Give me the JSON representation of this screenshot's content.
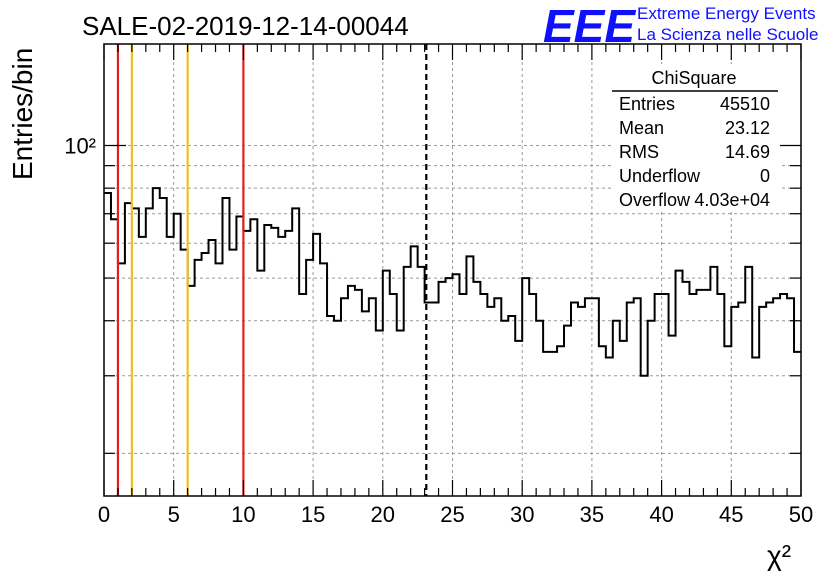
{
  "title": "SALE-02-2019-12-14-00044",
  "logo": {
    "mark": "EEE",
    "line1": "Extreme Energy Events",
    "line2": "La Scienza nelle Scuole",
    "color": "#1010ff"
  },
  "stats_box": {
    "title": "ChiSquare",
    "rows": [
      {
        "label": "Entries",
        "value": "45510"
      },
      {
        "label": "Mean",
        "value": "23.12"
      },
      {
        "label": "RMS",
        "value": "14.69"
      },
      {
        "label": "Underflow",
        "value": "0"
      },
      {
        "label": "Overflow",
        "value": "4.03e+04"
      }
    ]
  },
  "chart_data": {
    "type": "histogram",
    "title": "SALE-02-2019-12-14-00044",
    "xlabel": "χ²",
    "ylabel": "Entries/bin",
    "xlim": [
      0,
      50
    ],
    "ylim": [
      16,
      170
    ],
    "log_y": true,
    "grid": true,
    "bin_width": 0.5,
    "x_ticks": [
      0,
      5,
      10,
      15,
      20,
      25,
      30,
      35,
      40,
      45,
      50
    ],
    "y_tick_label": "10²",
    "y_tick_value": 100,
    "values": [
      78,
      68,
      54,
      74,
      72,
      62,
      72,
      80,
      76,
      62,
      70,
      58,
      48,
      55,
      57,
      61,
      54,
      76,
      58,
      69,
      64,
      68,
      52,
      66,
      65,
      62,
      64,
      72,
      46,
      55,
      63,
      54,
      41,
      40,
      45,
      48,
      47,
      42,
      45,
      38,
      52,
      46,
      38,
      53,
      59,
      53,
      44,
      44,
      49,
      50,
      51,
      46,
      56,
      49,
      46,
      43,
      45,
      40,
      41,
      36,
      50,
      46,
      40,
      34,
      34,
      35,
      39,
      44,
      43,
      45,
      45,
      35,
      33,
      40,
      36,
      44,
      45,
      30,
      40,
      46,
      46,
      37,
      52,
      49,
      46,
      47,
      47,
      53,
      46,
      35,
      43,
      44,
      53,
      33,
      43,
      44,
      45,
      46,
      45,
      34,
      39
    ],
    "vertical_lines": [
      {
        "x": 1,
        "color": "#e02020",
        "style": "solid"
      },
      {
        "x": 2,
        "color": "#f0c020",
        "style": "solid"
      },
      {
        "x": 6,
        "color": "#f0c020",
        "style": "solid"
      },
      {
        "x": 10,
        "color": "#e02020",
        "style": "solid"
      },
      {
        "x": 23.12,
        "color": "#000000",
        "style": "dashed"
      }
    ]
  }
}
